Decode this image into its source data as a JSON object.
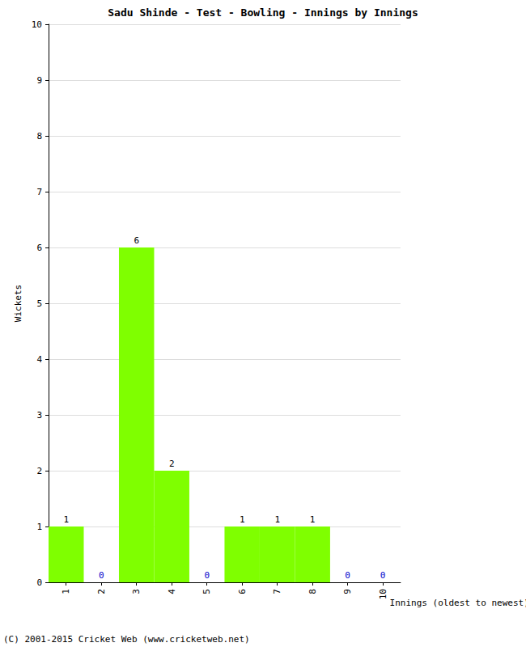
{
  "chart_data": {
    "type": "bar",
    "title": "Sadu Shinde - Test - Bowling - Innings by Innings",
    "x_label": "Innings (oldest to newest)",
    "y_label": "Wickets",
    "categories": [
      "1",
      "2",
      "3",
      "4",
      "5",
      "6",
      "7",
      "8",
      "9",
      "10"
    ],
    "values": [
      1,
      0,
      6,
      2,
      0,
      1,
      1,
      1,
      0,
      0
    ],
    "color": "#7fff00",
    "ylim": [
      0,
      10
    ],
    "yticks": [
      0,
      1,
      2,
      3,
      4,
      5,
      6,
      7,
      8,
      9,
      10
    ],
    "grid": true,
    "data_labels": true,
    "annotations": [
      "(C) 2001-2015 Cricket Web (www.cricketweb.net)"
    ]
  }
}
